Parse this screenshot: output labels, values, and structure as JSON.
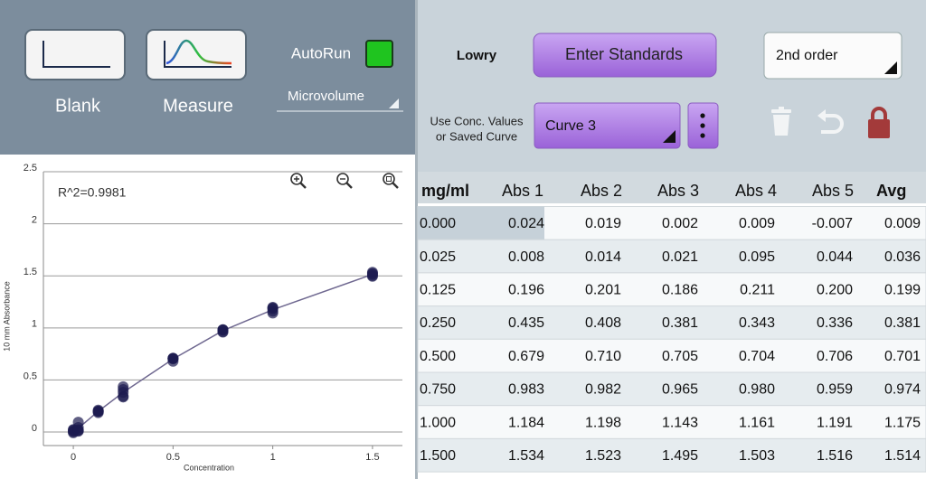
{
  "toolbar": {
    "blank": "Blank",
    "measure": "Measure",
    "autorun": "AutoRun",
    "mode": "Microvolume"
  },
  "panel": {
    "method": "Lowry",
    "enter_standards": "Enter Standards",
    "fit": "2nd order",
    "source_label": [
      "Use Conc. Values",
      "or Saved Curve"
    ],
    "curve": "Curve 3"
  },
  "table": {
    "header": [
      "mg/ml",
      "Abs 1",
      "Abs 2",
      "Abs 3",
      "Abs 4",
      "Abs 5",
      "Avg"
    ],
    "rows": [
      [
        "0.000",
        "0.024",
        "0.019",
        "0.002",
        "0.009",
        "-0.007",
        "0.009"
      ],
      [
        "0.025",
        "0.008",
        "0.014",
        "0.021",
        "0.095",
        "0.044",
        "0.036"
      ],
      [
        "0.125",
        "0.196",
        "0.201",
        "0.186",
        "0.211",
        "0.200",
        "0.199"
      ],
      [
        "0.250",
        "0.435",
        "0.408",
        "0.381",
        "0.343",
        "0.336",
        "0.381"
      ],
      [
        "0.500",
        "0.679",
        "0.710",
        "0.705",
        "0.704",
        "0.706",
        "0.701"
      ],
      [
        "0.750",
        "0.983",
        "0.982",
        "0.965",
        "0.980",
        "0.959",
        "0.974"
      ],
      [
        "1.000",
        "1.184",
        "1.198",
        "1.143",
        "1.161",
        "1.191",
        "1.175"
      ],
      [
        "1.500",
        "1.534",
        "1.523",
        "1.495",
        "1.503",
        "1.516",
        "1.514"
      ]
    ]
  },
  "chart_data": {
    "type": "scatter",
    "annotation": "R^2=0.9981",
    "x_label": "Concentration",
    "y_label": "10 mm Absorbance",
    "color": "#1c1b50",
    "x": [
      0,
      0,
      0,
      0,
      0,
      0.025,
      0.025,
      0.025,
      0.025,
      0.025,
      0.125,
      0.125,
      0.125,
      0.125,
      0.125,
      0.25,
      0.25,
      0.25,
      0.25,
      0.25,
      0.5,
      0.5,
      0.5,
      0.5,
      0.5,
      0.75,
      0.75,
      0.75,
      0.75,
      0.75,
      1,
      1,
      1,
      1,
      1,
      1.5,
      1.5,
      1.5,
      1.5,
      1.5
    ],
    "values": [
      0.024,
      0.019,
      0.002,
      0.009,
      -0.007,
      0.008,
      0.014,
      0.021,
      0.095,
      0.044,
      0.196,
      0.201,
      0.186,
      0.211,
      0.2,
      0.435,
      0.408,
      0.381,
      0.343,
      0.336,
      0.679,
      0.71,
      0.705,
      0.704,
      0.706,
      0.983,
      0.982,
      0.965,
      0.98,
      0.959,
      1.184,
      1.198,
      1.143,
      1.161,
      1.191,
      1.534,
      1.523,
      1.495,
      1.503,
      1.516
    ],
    "curve": {
      "color": "#6f6890",
      "x": [
        0,
        0.025,
        0.125,
        0.25,
        0.5,
        0.75,
        1,
        1.5
      ],
      "values": [
        0.009,
        0.036,
        0.199,
        0.381,
        0.701,
        0.974,
        1.175,
        1.514
      ]
    },
    "xlim": [
      -0.15,
      1.65
    ],
    "ylim": [
      -0.13,
      2.5
    ],
    "xticks": [
      0,
      0.5,
      1,
      1.5
    ],
    "yticks": [
      0,
      0.5,
      1,
      1.5,
      2,
      2.5
    ],
    "grid": true
  }
}
